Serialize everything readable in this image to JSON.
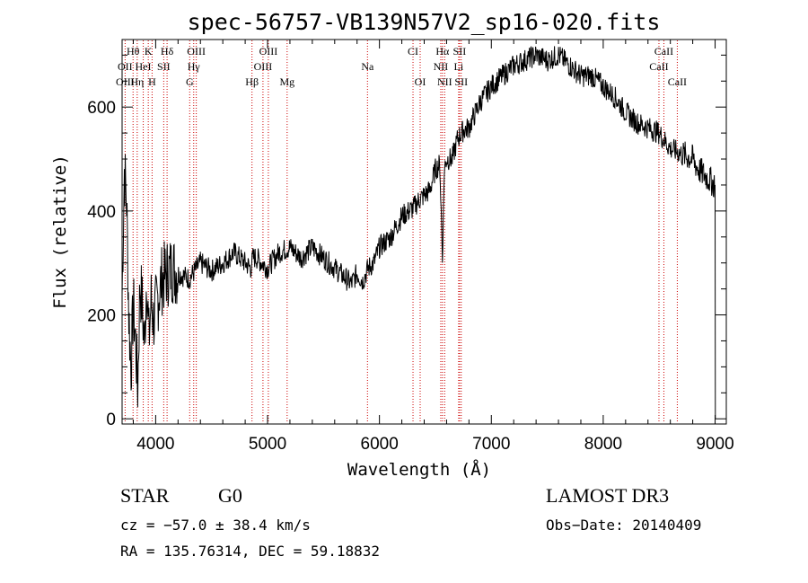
{
  "chart_data": {
    "type": "line",
    "title": "spec-56757-VB139N57V2_sp16-020.fits",
    "xlabel": "Wavelength (Å)",
    "ylabel": "Flux (relative)",
    "xlim": [
      3700,
      9100
    ],
    "ylim": [
      -10,
      730
    ],
    "x_ticks": [
      4000,
      5000,
      6000,
      7000,
      8000,
      9000
    ],
    "x_tick_labels": [
      "4000",
      "5000",
      "6000",
      "7000",
      "8000",
      "9000"
    ],
    "y_ticks": [
      0,
      200,
      400,
      600
    ],
    "y_tick_labels": [
      "0",
      "200",
      "400",
      "600"
    ],
    "series": [
      {
        "name": "flux",
        "x": [
          3700,
          3720,
          3740,
          3760,
          3780,
          3800,
          3820,
          3840,
          3860,
          3880,
          3900,
          3920,
          3940,
          3960,
          3980,
          4000,
          4050,
          4100,
          4150,
          4200,
          4300,
          4400,
          4500,
          4600,
          4700,
          4800,
          4850,
          4870,
          4900,
          5000,
          5100,
          5200,
          5300,
          5400,
          5500,
          5600,
          5700,
          5750,
          5800,
          5850,
          5900,
          5950,
          6000,
          6100,
          6200,
          6300,
          6350,
          6400,
          6450,
          6500,
          6540,
          6563,
          6580,
          6600,
          6650,
          6700,
          6750,
          6800,
          6900,
          7000,
          7100,
          7200,
          7300,
          7400,
          7500,
          7600,
          7700,
          7800,
          7900,
          8000,
          8100,
          8200,
          8300,
          8400,
          8500,
          8600,
          8700,
          8800,
          8850,
          8900,
          8950,
          9000
        ],
        "values": [
          240,
          480,
          420,
          200,
          100,
          220,
          150,
          60,
          260,
          220,
          140,
          280,
          150,
          230,
          190,
          210,
          265,
          280,
          290,
          280,
          270,
          300,
          285,
          300,
          320,
          300,
          290,
          310,
          310,
          290,
          320,
          330,
          310,
          330,
          310,
          290,
          270,
          260,
          280,
          265,
          290,
          300,
          330,
          350,
          390,
          405,
          420,
          430,
          440,
          480,
          490,
          310,
          480,
          500,
          500,
          540,
          555,
          560,
          610,
          640,
          660,
          680,
          690,
          700,
          690,
          700,
          680,
          660,
          660,
          640,
          620,
          590,
          570,
          560,
          550,
          520,
          510,
          500,
          480,
          470,
          460,
          450
        ]
      }
    ],
    "emission_lines": [
      {
        "label": "Hθ",
        "x": 3798,
        "row": 1
      },
      {
        "label": "OII",
        "x": 3727,
        "row": 2
      },
      {
        "label": "OIII",
        "x": 3727,
        "row": 3
      },
      {
        "label": "K",
        "x": 3934,
        "row": 1
      },
      {
        "label": "HeI",
        "x": 3889,
        "row": 2
      },
      {
        "label": "Hη",
        "x": 3835,
        "row": 3
      },
      {
        "label": "Hδ",
        "x": 4102,
        "row": 1
      },
      {
        "label": "SII",
        "x": 4072,
        "row": 2
      },
      {
        "label": "H",
        "x": 3968,
        "row": 3
      },
      {
        "label": "OIII",
        "x": 4363,
        "row": 1
      },
      {
        "label": "Hγ",
        "x": 4340,
        "row": 2
      },
      {
        "label": "G",
        "x": 4304,
        "row": 3
      },
      {
        "label": "OIII",
        "x": 5007,
        "row": 1
      },
      {
        "label": "OIII",
        "x": 4959,
        "row": 2
      },
      {
        "label": "Hβ",
        "x": 4861,
        "row": 3
      },
      {
        "label": "Mg",
        "x": 5175,
        "row": 3
      },
      {
        "label": "Na",
        "x": 5893,
        "row": 2
      },
      {
        "label": "CI",
        "x": 6300,
        "row": 1
      },
      {
        "label": "OI",
        "x": 6364,
        "row": 3
      },
      {
        "label": "Hα",
        "x": 6563,
        "row": 1
      },
      {
        "label": "NII",
        "x": 6548,
        "row": 2
      },
      {
        "label": "NII",
        "x": 6583,
        "row": 3
      },
      {
        "label": "SII",
        "x": 6716,
        "row": 1
      },
      {
        "label": "Li",
        "x": 6708,
        "row": 2
      },
      {
        "label": "SII",
        "x": 6731,
        "row": 3
      },
      {
        "label": "CaII",
        "x": 8542,
        "row": 1
      },
      {
        "label": "CaII",
        "x": 8498,
        "row": 2
      },
      {
        "label": "CaII",
        "x": 8662,
        "row": 3
      }
    ]
  },
  "info": {
    "class": "STAR",
    "subclass": "G0",
    "survey": "LAMOST DR3",
    "cz": "cz = −57.0 ± 38.4 km/s",
    "obs_date": "Obs−Date: 20140409",
    "coords": "RA = 135.76314, DEC =  59.18832"
  },
  "colors": {
    "line": "#000000",
    "emission_marker": "#cc0000"
  }
}
